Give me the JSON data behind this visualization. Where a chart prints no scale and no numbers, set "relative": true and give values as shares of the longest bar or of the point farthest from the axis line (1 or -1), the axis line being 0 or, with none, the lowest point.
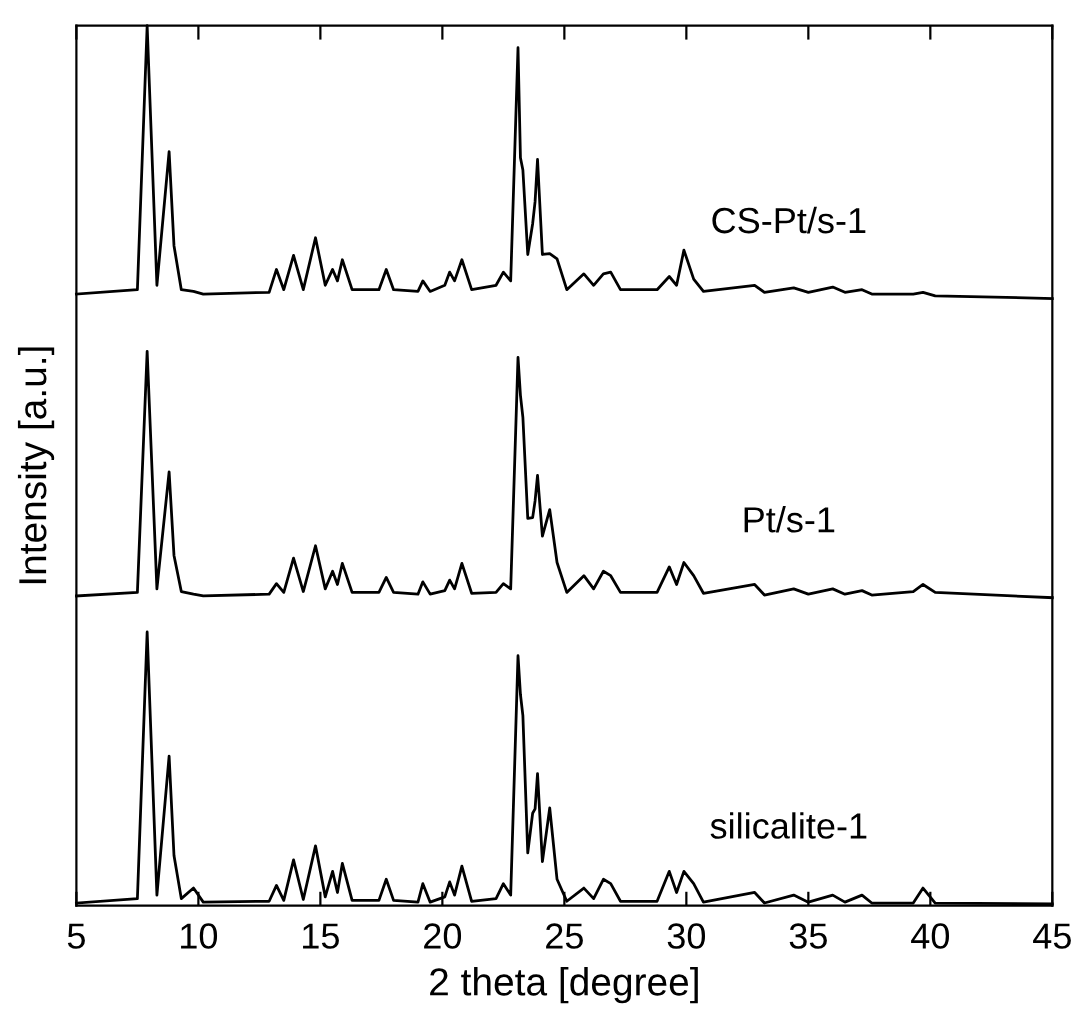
{
  "chart_data": {
    "type": "line",
    "relative": true,
    "xlabel": "2 theta [degree]",
    "ylabel": "Intensity [a.u.]",
    "xlim": [
      5,
      45
    ],
    "xticks": [
      5,
      10,
      15,
      20,
      25,
      30,
      35,
      40,
      45
    ],
    "grid": false,
    "legend": false,
    "marker": "none",
    "line_style": "solid",
    "x": [
      5,
      7.5,
      7.9,
      8.3,
      8.8,
      9.0,
      9.3,
      9.8,
      10.2,
      12.9,
      13.2,
      13.5,
      13.9,
      14.3,
      14.8,
      15.2,
      15.5,
      15.7,
      15.9,
      16.3,
      17.4,
      17.7,
      18.0,
      19.0,
      19.2,
      19.5,
      20.1,
      20.3,
      20.5,
      20.8,
      21.2,
      22.2,
      22.5,
      22.8,
      23.1,
      23.2,
      23.3,
      23.5,
      23.7,
      23.8,
      23.9,
      24.1,
      24.4,
      24.7,
      25.1,
      25.8,
      26.2,
      26.6,
      26.9,
      27.3,
      28.8,
      29.3,
      29.6,
      29.9,
      30.3,
      30.7,
      32.8,
      33.2,
      34.4,
      35.0,
      36.0,
      36.5,
      37.2,
      37.6,
      39.3,
      39.7,
      40.2,
      45
    ],
    "series": [
      {
        "name": "CS-Pt/s-1",
        "color": "#000000",
        "values": [
          0.695,
          0.7,
          1.0,
          0.705,
          0.857,
          0.75,
          0.7,
          0.698,
          0.695,
          0.697,
          0.723,
          0.7,
          0.739,
          0.7,
          0.759,
          0.705,
          0.723,
          0.71,
          0.734,
          0.7,
          0.7,
          0.723,
          0.7,
          0.698,
          0.71,
          0.698,
          0.705,
          0.72,
          0.71,
          0.734,
          0.7,
          0.705,
          0.72,
          0.71,
          0.975,
          0.85,
          0.836,
          0.74,
          0.775,
          0.8,
          0.848,
          0.74,
          0.741,
          0.735,
          0.7,
          0.718,
          0.705,
          0.718,
          0.72,
          0.7,
          0.7,
          0.715,
          0.705,
          0.745,
          0.712,
          0.698,
          0.705,
          0.697,
          0.702,
          0.697,
          0.703,
          0.697,
          0.7,
          0.695,
          0.695,
          0.697,
          0.693,
          0.69
        ]
      },
      {
        "name": "Pt/s-1",
        "color": "#000000",
        "values": [
          0.352,
          0.356,
          0.63,
          0.36,
          0.493,
          0.398,
          0.357,
          0.354,
          0.352,
          0.354,
          0.366,
          0.356,
          0.395,
          0.357,
          0.409,
          0.36,
          0.38,
          0.365,
          0.389,
          0.356,
          0.356,
          0.373,
          0.356,
          0.354,
          0.368,
          0.354,
          0.358,
          0.37,
          0.36,
          0.389,
          0.355,
          0.356,
          0.366,
          0.36,
          0.623,
          0.58,
          0.555,
          0.44,
          0.441,
          0.46,
          0.489,
          0.42,
          0.45,
          0.39,
          0.356,
          0.375,
          0.36,
          0.38,
          0.375,
          0.356,
          0.356,
          0.385,
          0.365,
          0.39,
          0.375,
          0.355,
          0.365,
          0.353,
          0.36,
          0.354,
          0.36,
          0.354,
          0.358,
          0.353,
          0.357,
          0.365,
          0.356,
          0.35
        ]
      },
      {
        "name": "silicalite-1",
        "color": "#000000",
        "values": [
          0.003,
          0.008,
          0.311,
          0.012,
          0.17,
          0.057,
          0.008,
          0.02,
          0.004,
          0.005,
          0.023,
          0.006,
          0.052,
          0.007,
          0.068,
          0.01,
          0.039,
          0.015,
          0.048,
          0.006,
          0.006,
          0.03,
          0.006,
          0.004,
          0.025,
          0.004,
          0.01,
          0.027,
          0.012,
          0.045,
          0.005,
          0.008,
          0.025,
          0.012,
          0.284,
          0.24,
          0.216,
          0.06,
          0.105,
          0.11,
          0.15,
          0.05,
          0.111,
          0.03,
          0.005,
          0.02,
          0.008,
          0.03,
          0.025,
          0.005,
          0.005,
          0.039,
          0.015,
          0.039,
          0.025,
          0.004,
          0.015,
          0.003,
          0.012,
          0.004,
          0.012,
          0.004,
          0.012,
          0.003,
          0.003,
          0.02,
          0.003,
          0.002
        ]
      }
    ]
  }
}
